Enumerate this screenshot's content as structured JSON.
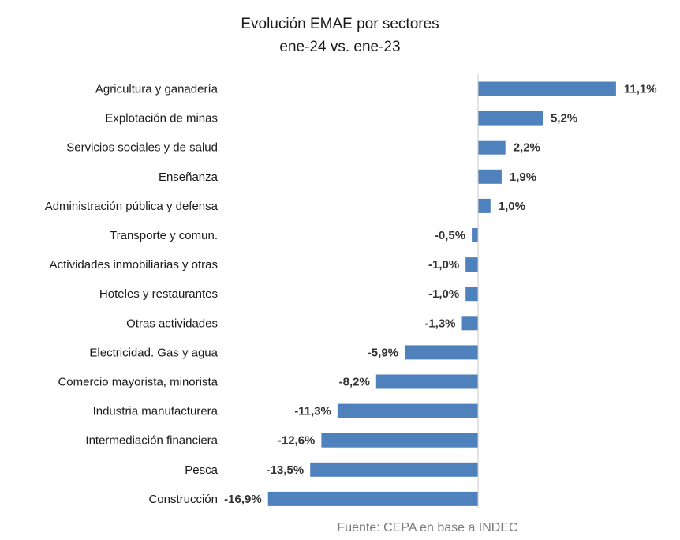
{
  "chart_data": {
    "type": "bar",
    "orientation": "horizontal",
    "title": "Evolución EMAE por sectores",
    "subtitle": "ene-24 vs. ene-23",
    "xlabel": "",
    "ylabel": "",
    "grid": false,
    "legend": "none",
    "bar_color": "#4f81bd",
    "axis_color": "#c8c8c8",
    "xlim": [
      -16.9,
      11.1
    ],
    "categories": [
      "Agricultura y ganadería",
      "Explotación de minas",
      "Servicios sociales y de salud",
      "Enseñanza",
      "Administración pública y defensa",
      "Transporte y comun.",
      "Actividades inmobiliarias y otras",
      "Hoteles y restaurantes",
      "Otras actividades",
      "Electricidad. Gas y agua",
      "Comercio mayorista, minorista",
      "Industria manufacturera",
      "Intermediación financiera",
      "Pesca",
      "Construcción"
    ],
    "values": [
      11.1,
      5.2,
      2.2,
      1.9,
      1.0,
      -0.5,
      -1.0,
      -1.0,
      -1.3,
      -5.9,
      -8.2,
      -11.3,
      -12.6,
      -13.5,
      -16.9
    ],
    "data_labels": [
      "11,1%",
      "5,2%",
      "2,2%",
      "1,9%",
      "1,0%",
      "-0,5%",
      "-1,0%",
      "-1,0%",
      "-1,3%",
      "-5,9%",
      "-8,2%",
      "-11,3%",
      "-12,6%",
      "-13,5%",
      "-16,9%"
    ]
  },
  "source": "Fuente: CEPA en base a INDEC"
}
